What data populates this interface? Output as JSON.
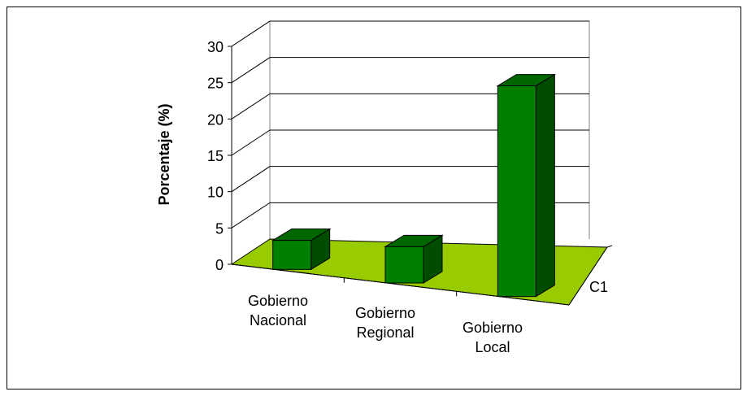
{
  "chart_data": {
    "type": "bar",
    "projection": "3d",
    "categories": [
      "Gobierno Nacional",
      "Gobierno Regional",
      "Gobierno Local"
    ],
    "category_lines": [
      [
        "Gobierno",
        "Nacional"
      ],
      [
        "Gobierno",
        "Regional"
      ],
      [
        "Gobierno",
        "Local"
      ]
    ],
    "series": [
      {
        "label": "C1",
        "values": [
          4,
          5,
          29
        ]
      }
    ],
    "ylabel": "Porcentaje (%)",
    "ylim": [
      0,
      30
    ],
    "yticks": [
      0,
      5,
      10,
      15,
      20,
      25,
      30
    ],
    "ytick_labels": [
      "0",
      "5",
      "10",
      "15",
      "20",
      "25",
      "30"
    ],
    "grid": true,
    "colors": {
      "bar_front": "#008000",
      "bar_top": "#006600",
      "bar_side": "#004d00",
      "floor": "#99cc00",
      "outline": "#000000",
      "grid": "#000000"
    }
  }
}
